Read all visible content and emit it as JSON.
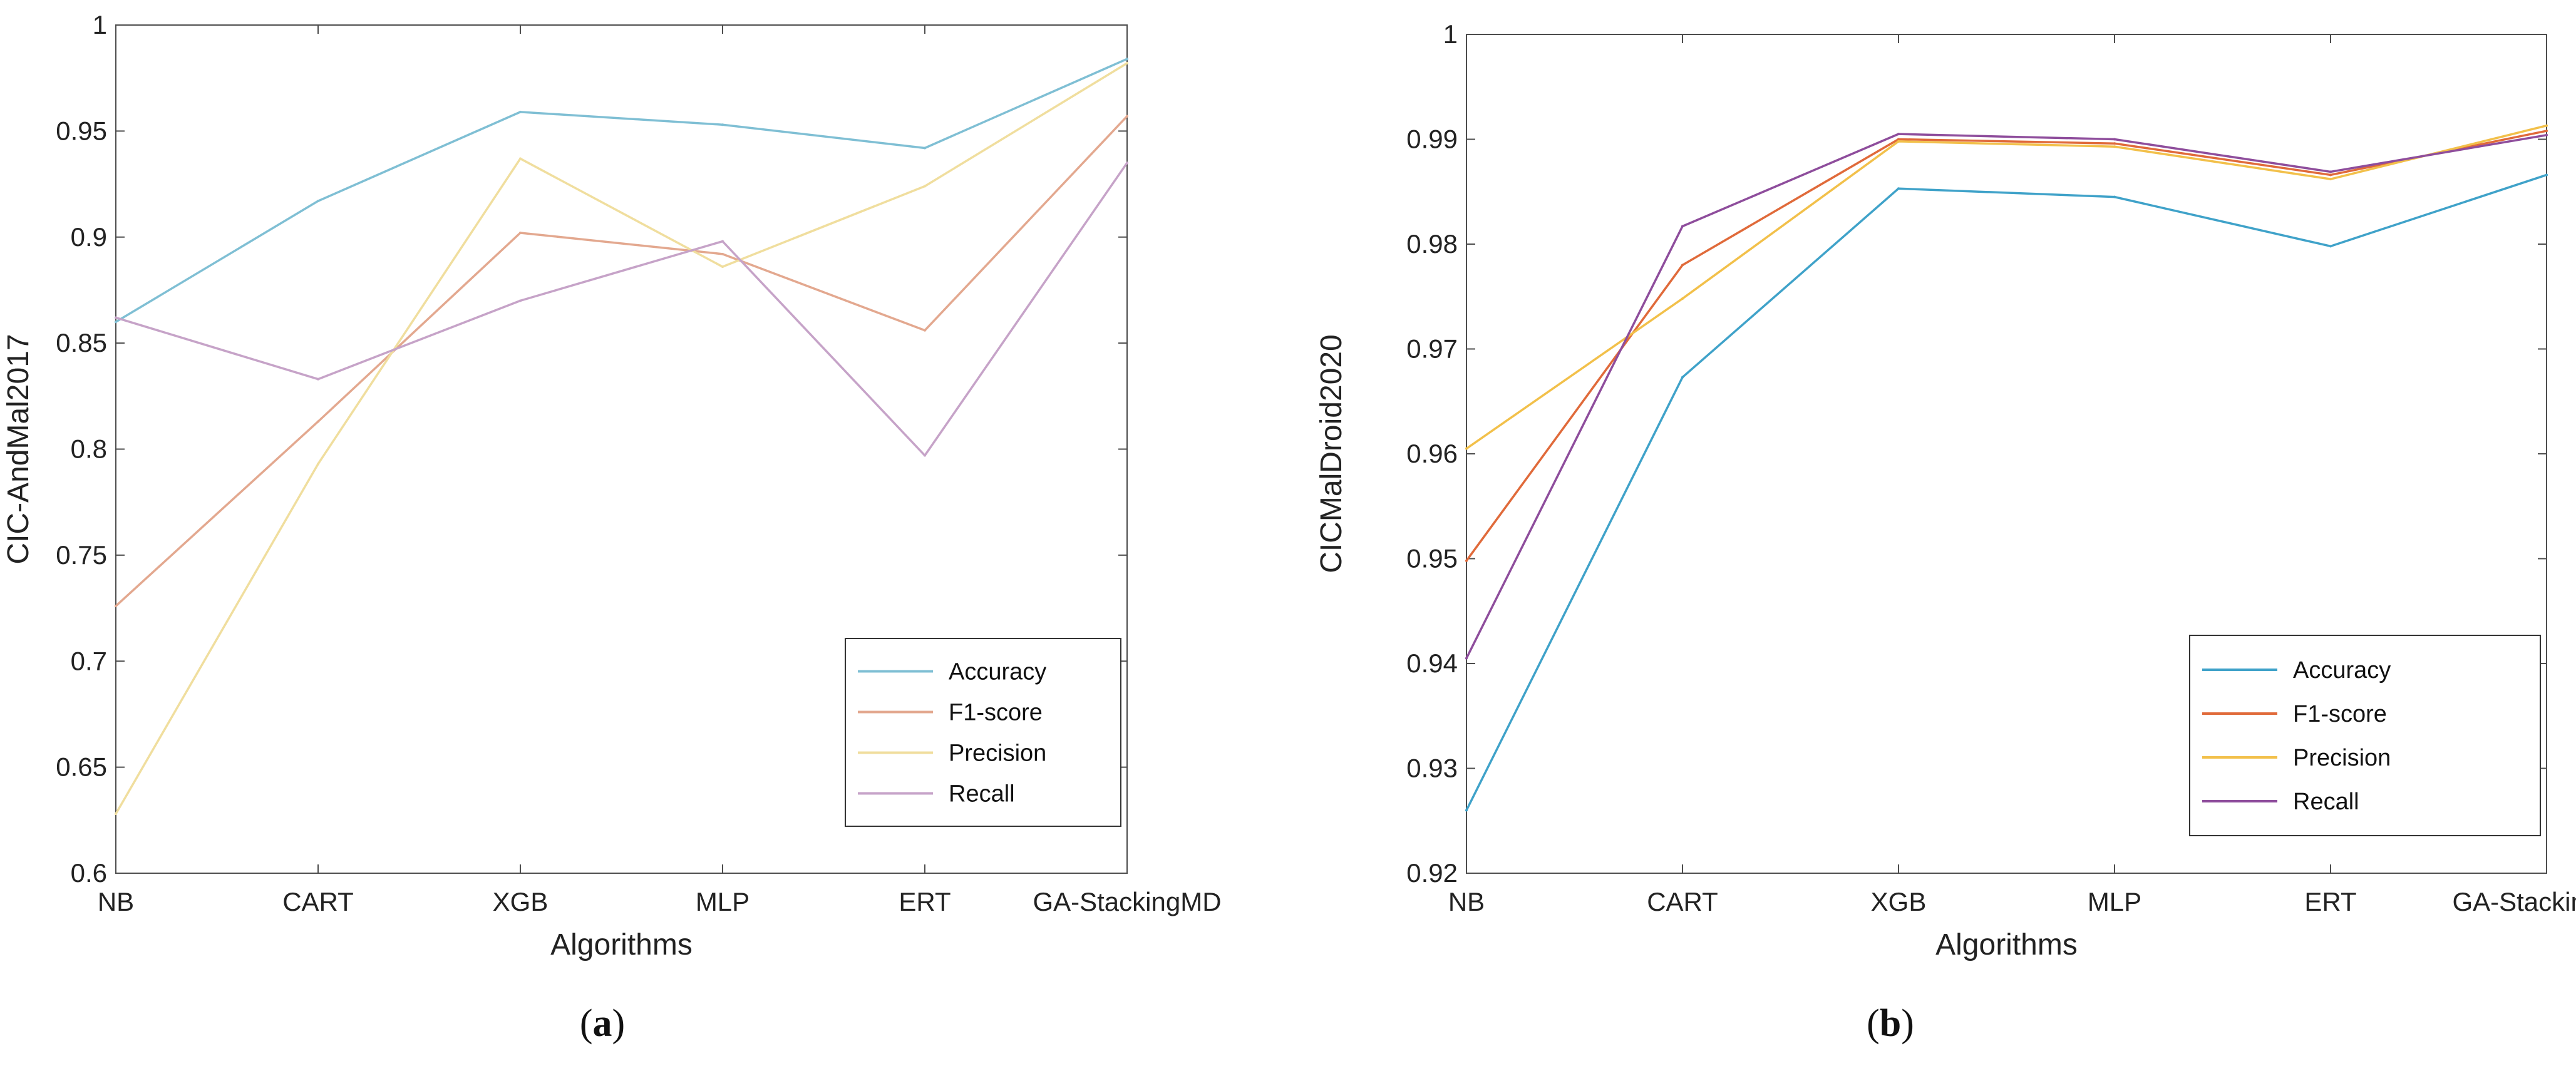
{
  "chart_data": [
    {
      "type": "line",
      "panel_label": "a",
      "xlabel": "Algorithms",
      "ylabel": "CIC-AndMal2017",
      "categories": [
        "NB",
        "CART",
        "XGB",
        "MLP",
        "ERT",
        "GA-StackingMD"
      ],
      "ylim": [
        0.6,
        1.0
      ],
      "yticks": [
        0.6,
        0.65,
        0.7,
        0.75,
        0.8,
        0.85,
        0.9,
        0.95,
        1
      ],
      "ytick_labels": [
        "0.6",
        "0.65",
        "0.7",
        "0.75",
        "0.8",
        "0.85",
        "0.9",
        "0.95",
        "1"
      ],
      "legend_position": "bottom-right",
      "series": [
        {
          "name": "Accuracy",
          "color": "#7fbfd4",
          "values": [
            0.86,
            0.917,
            0.959,
            0.953,
            0.942,
            0.984
          ]
        },
        {
          "name": "F1-score",
          "color": "#e3a88f",
          "values": [
            0.726,
            0.813,
            0.902,
            0.892,
            0.856,
            0.957
          ]
        },
        {
          "name": "Precision",
          "color": "#f0de9e",
          "values": [
            0.628,
            0.793,
            0.937,
            0.886,
            0.924,
            0.982
          ]
        },
        {
          "name": "Recall",
          "color": "#c6a3c8",
          "values": [
            0.862,
            0.833,
            0.87,
            0.898,
            0.797,
            0.935
          ]
        }
      ]
    },
    {
      "type": "line",
      "panel_label": "b",
      "xlabel": "Algorithms",
      "ylabel": "CICMalDroid2020",
      "categories": [
        "NB",
        "CART",
        "XGB",
        "MLP",
        "ERT",
        "GA-StackingMD"
      ],
      "ylim": [
        0.92,
        1.0
      ],
      "yticks": [
        0.92,
        0.93,
        0.94,
        0.95,
        0.96,
        0.97,
        0.98,
        0.99,
        1
      ],
      "ytick_labels": [
        "0.92",
        "0.93",
        "0.94",
        "0.95",
        "0.96",
        "0.97",
        "0.98",
        "0.99",
        "1"
      ],
      "legend_position": "bottom-right",
      "series": [
        {
          "name": "Accuracy",
          "color": "#3fa2c9",
          "values": [
            0.926,
            0.9673,
            0.9853,
            0.9845,
            0.9798,
            0.9866
          ]
        },
        {
          "name": "F1-score",
          "color": "#e06a3a",
          "values": [
            0.9498,
            0.978,
            0.99,
            0.9896,
            0.9866,
            0.9908
          ]
        },
        {
          "name": "Precision",
          "color": "#f2c04a",
          "values": [
            0.9605,
            0.9748,
            0.9898,
            0.9893,
            0.9862,
            0.9913
          ]
        },
        {
          "name": "Recall",
          "color": "#8e4d9c",
          "values": [
            0.9405,
            0.9817,
            0.9905,
            0.99,
            0.9869,
            0.9904
          ]
        }
      ]
    }
  ]
}
